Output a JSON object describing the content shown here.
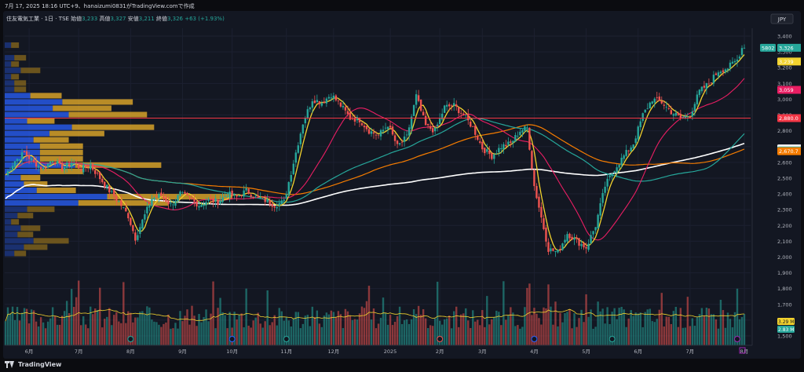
{
  "caption": "7月 17, 2025 18:16 UTC+9、hanaizumi0831がTradingView.comで作成",
  "brand": "TradingView",
  "chart_data": {
    "type": "candlestick",
    "symbol_line": {
      "name": "住友電気工業 · 1日 · TSE",
      "open_label": "始値",
      "open": "3,233",
      "high_label": "高値",
      "high": "3,327",
      "low_label": "安値",
      "low": "3,211",
      "close_label": "終値",
      "close": "3,326",
      "change": "+63 (+1.93%)"
    },
    "currency": "JPY",
    "price_axis": {
      "min": 1500,
      "max": 3400,
      "ticks": [
        "3,400",
        "3,300",
        "3,200",
        "3,100",
        "3,000",
        "2,900",
        "2,800",
        "2,700",
        "2,600",
        "2,500",
        "2,400",
        "2,300",
        "2,200",
        "2,100",
        "2,000",
        "1,900",
        "1,800",
        "1,700",
        "1,600",
        "1,500"
      ]
    },
    "time_axis": {
      "labels": [
        {
          "text": "6月",
          "bar": 10
        },
        {
          "text": "7月",
          "bar": 31
        },
        {
          "text": "8月",
          "bar": 53
        },
        {
          "text": "9月",
          "bar": 75
        },
        {
          "text": "10月",
          "bar": 96
        },
        {
          "text": "11月",
          "bar": 119
        },
        {
          "text": "12月",
          "bar": 139
        },
        {
          "text": "2025",
          "bar": 163
        },
        {
          "text": "2月",
          "bar": 184
        },
        {
          "text": "3月",
          "bar": 202
        },
        {
          "text": "4月",
          "bar": 224
        },
        {
          "text": "5月",
          "bar": 246
        },
        {
          "text": "6月",
          "bar": 268
        },
        {
          "text": "7月",
          "bar": 290
        },
        {
          "text": "8月",
          "bar": 313
        }
      ]
    },
    "price_labels": [
      {
        "value": 3326,
        "text": "3,326",
        "tag": "5802",
        "color": "#26a69a"
      },
      {
        "value": 3239,
        "text": "3,239",
        "color": "#f2d22e"
      },
      {
        "value": 3059,
        "text": "3,059",
        "color": "#e91e63"
      },
      {
        "value": 2880,
        "text": "2,880.0",
        "color": "#f23645"
      },
      {
        "value": 2688,
        "text": "2,688.0",
        "color": "#ffffff"
      },
      {
        "value": 2675,
        "text": "2,675.0",
        "color": "#26a69a"
      },
      {
        "value": 2670.7,
        "text": "2,670.7",
        "color": "#f57c00"
      }
    ],
    "horizontal_line": {
      "value": 2880,
      "color": "#f23645"
    },
    "volume": {
      "label_value": "3.29 M",
      "label_color": "#f2d22e",
      "last_label": "2.83 M",
      "last_color": "#26a69a"
    },
    "candles_keypoints": [
      [
        0,
        2520
      ],
      [
        4,
        2610
      ],
      [
        8,
        2660
      ],
      [
        12,
        2600
      ],
      [
        16,
        2560
      ],
      [
        20,
        2620
      ],
      [
        24,
        2560
      ],
      [
        28,
        2600
      ],
      [
        32,
        2560
      ],
      [
        36,
        2580
      ],
      [
        40,
        2500
      ],
      [
        44,
        2420
      ],
      [
        48,
        2350
      ],
      [
        52,
        2260
      ],
      [
        55,
        2120
      ],
      [
        58,
        2230
      ],
      [
        62,
        2370
      ],
      [
        66,
        2390
      ],
      [
        70,
        2330
      ],
      [
        74,
        2400
      ],
      [
        78,
        2370
      ],
      [
        82,
        2330
      ],
      [
        86,
        2360
      ],
      [
        90,
        2350
      ],
      [
        94,
        2400
      ],
      [
        98,
        2380
      ],
      [
        102,
        2420
      ],
      [
        106,
        2380
      ],
      [
        110,
        2360
      ],
      [
        114,
        2330
      ],
      [
        118,
        2350
      ],
      [
        122,
        2600
      ],
      [
        126,
        2850
      ],
      [
        130,
        3000
      ],
      [
        134,
        2980
      ],
      [
        138,
        3030
      ],
      [
        142,
        2960
      ],
      [
        146,
        2880
      ],
      [
        150,
        2870
      ],
      [
        154,
        2800
      ],
      [
        158,
        2770
      ],
      [
        162,
        2840
      ],
      [
        166,
        2700
      ],
      [
        170,
        2760
      ],
      [
        174,
        3020
      ],
      [
        178,
        2830
      ],
      [
        182,
        2800
      ],
      [
        186,
        2950
      ],
      [
        190,
        2960
      ],
      [
        194,
        2900
      ],
      [
        198,
        2820
      ],
      [
        202,
        2690
      ],
      [
        206,
        2640
      ],
      [
        210,
        2700
      ],
      [
        214,
        2720
      ],
      [
        218,
        2800
      ],
      [
        221,
        2820
      ],
      [
        224,
        2450
      ],
      [
        227,
        2250
      ],
      [
        230,
        2050
      ],
      [
        234,
        2030
      ],
      [
        238,
        2150
      ],
      [
        242,
        2100
      ],
      [
        246,
        2060
      ],
      [
        250,
        2200
      ],
      [
        254,
        2450
      ],
      [
        258,
        2560
      ],
      [
        262,
        2640
      ],
      [
        266,
        2720
      ],
      [
        270,
        2900
      ],
      [
        274,
        3000
      ],
      [
        278,
        2980
      ],
      [
        282,
        2920
      ],
      [
        286,
        2880
      ],
      [
        290,
        2900
      ],
      [
        294,
        3050
      ],
      [
        298,
        3100
      ],
      [
        302,
        3180
      ],
      [
        306,
        3200
      ],
      [
        310,
        3250
      ],
      [
        312,
        3326
      ]
    ]
  }
}
